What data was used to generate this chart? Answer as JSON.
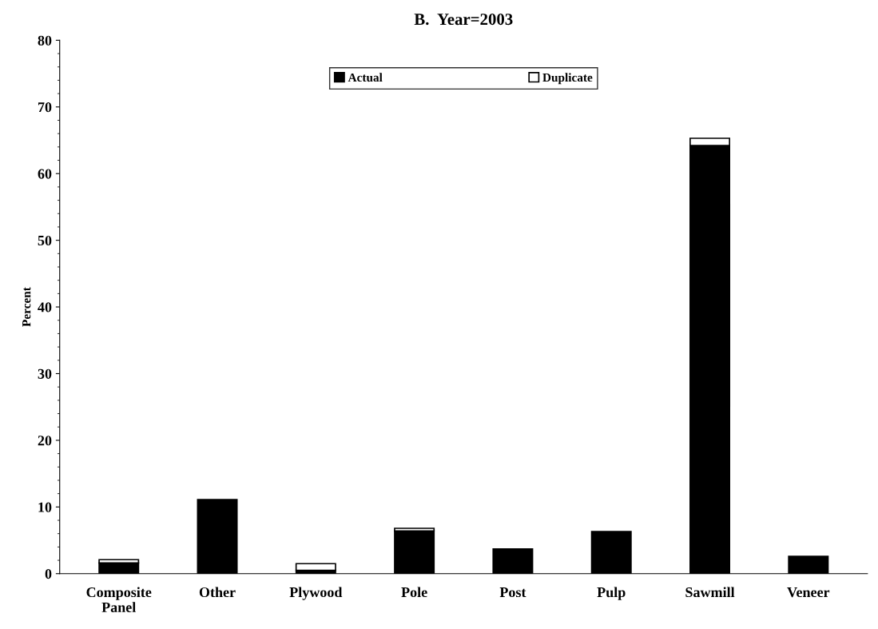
{
  "chart_data": {
    "type": "bar",
    "title": "B.  Year=2003",
    "ylabel": "Percent",
    "categories": [
      "Composite\nPanel",
      "Other",
      "Plywood",
      "Pole",
      "Post",
      "Pulp",
      "Sawmill",
      "Veneer"
    ],
    "stacked": true,
    "series": [
      {
        "name": "Actual",
        "color": "#000000",
        "values": [
          1.6,
          11.1,
          0.5,
          6.4,
          3.7,
          6.3,
          64.2,
          2.6
        ]
      },
      {
        "name": "Duplicate",
        "color": "#ffffff",
        "values": [
          0.5,
          null,
          1.0,
          0.4,
          null,
          null,
          1.1,
          null
        ]
      }
    ],
    "ylim": [
      0,
      80
    ],
    "yticks": [
      0,
      10,
      20,
      30,
      40,
      50,
      60,
      70,
      80
    ],
    "grid": false,
    "legend": "top"
  }
}
